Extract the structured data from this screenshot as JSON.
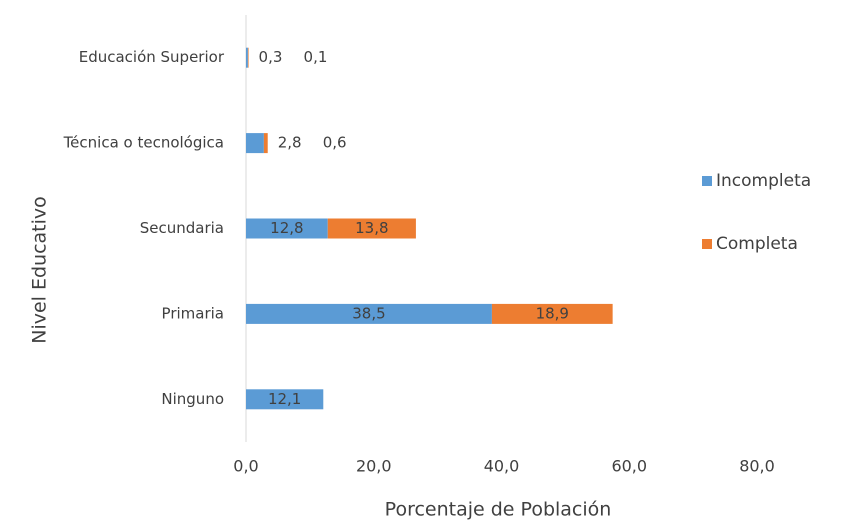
{
  "chart_data": {
    "type": "stacked-bar-horizontal",
    "categories": [
      "Educación Superior",
      "Técnica o tecnológica",
      "Secundaria",
      "Primaria",
      "Ninguno"
    ],
    "series": [
      {
        "name": "Incompleta",
        "color": "#5b9bd5",
        "values": [
          0.3,
          2.8,
          12.8,
          38.5,
          12.1
        ],
        "value_labels": [
          "0,3",
          "2,8",
          "12,8",
          "38,5",
          "12,1"
        ]
      },
      {
        "name": "Completa",
        "color": "#ed7d31",
        "values": [
          0.1,
          0.6,
          13.8,
          18.9,
          null
        ],
        "value_labels": [
          "0,1",
          "0,6",
          "13,8",
          "18,9",
          null
        ]
      }
    ],
    "xlim": [
      0,
      80
    ],
    "xticks": [
      {
        "value": 0,
        "label": "0,0"
      },
      {
        "value": 20,
        "label": "20,0"
      },
      {
        "value": 40,
        "label": "40,0"
      },
      {
        "value": 60,
        "label": "60,0"
      },
      {
        "value": 80,
        "label": "80,0"
      }
    ],
    "x_label": "Porcentaje de Población",
    "y_label": "Nivel Educativo",
    "legend": "right"
  }
}
